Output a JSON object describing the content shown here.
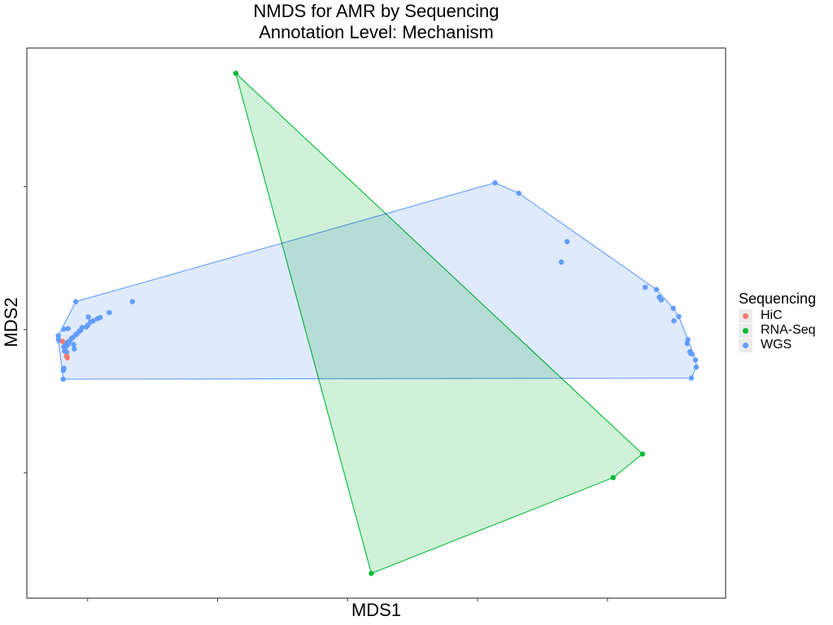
{
  "chart_data": {
    "type": "scatter",
    "title": "NMDS for AMR by Sequencing",
    "subtitle": "Annotation Level: Mechanism",
    "xlabel": "MDS1",
    "ylabel": "MDS2",
    "xlim": [
      0.0,
      1.0
    ],
    "ylim": [
      0.0,
      1.0
    ],
    "grid": false,
    "hulls": true,
    "legend": {
      "title": "Sequencing",
      "placement": "right"
    },
    "series": [
      {
        "name": "HiC",
        "color": "#F8766D",
        "fill": "#FBD0CC",
        "points": [
          [
            0.051,
            0.467
          ],
          [
            0.058,
            0.437
          ],
          [
            0.057,
            0.44
          ]
        ]
      },
      {
        "name": "RNA-Seq",
        "color": "#00BA38",
        "fill": "#CCF0D6",
        "points": [
          [
            0.299,
            0.954
          ],
          [
            0.881,
            0.262
          ],
          [
            0.839,
            0.219
          ],
          [
            0.493,
            0.045
          ]
        ]
      },
      {
        "name": "WGS",
        "color": "#619CFF",
        "fill": "#DDE9FC",
        "points": [
          [
            0.67,
            0.755
          ],
          [
            0.704,
            0.736
          ],
          [
            0.773,
            0.648
          ],
          [
            0.765,
            0.611
          ],
          [
            0.07,
            0.539
          ],
          [
            0.151,
            0.539
          ],
          [
            0.118,
            0.519
          ],
          [
            0.105,
            0.51
          ],
          [
            0.101,
            0.508
          ],
          [
            0.095,
            0.504
          ],
          [
            0.091,
            0.502
          ],
          [
            0.087,
            0.496
          ],
          [
            0.088,
            0.511
          ],
          [
            0.085,
            0.493
          ],
          [
            0.079,
            0.492
          ],
          [
            0.077,
            0.487
          ],
          [
            0.075,
            0.485
          ],
          [
            0.072,
            0.481
          ],
          [
            0.07,
            0.479
          ],
          [
            0.066,
            0.474
          ],
          [
            0.064,
            0.472
          ],
          [
            0.061,
            0.467
          ],
          [
            0.058,
            0.465
          ],
          [
            0.056,
            0.463
          ],
          [
            0.056,
            0.458
          ],
          [
            0.055,
            0.456
          ],
          [
            0.059,
            0.461
          ],
          [
            0.053,
            0.457
          ],
          [
            0.054,
            0.449
          ],
          [
            0.057,
            0.447
          ],
          [
            0.053,
            0.489
          ],
          [
            0.059,
            0.49
          ],
          [
            0.067,
            0.461
          ],
          [
            0.068,
            0.453
          ],
          [
            0.045,
            0.477
          ],
          [
            0.045,
            0.471
          ],
          [
            0.046,
            0.468
          ],
          [
            0.052,
            0.414
          ],
          [
            0.053,
            0.418
          ],
          [
            0.052,
            0.398
          ],
          [
            0.885,
            0.565
          ],
          [
            0.901,
            0.561
          ],
          [
            0.905,
            0.547
          ],
          [
            0.908,
            0.542
          ],
          [
            0.925,
            0.527
          ],
          [
            0.933,
            0.512
          ],
          [
            0.926,
            0.504
          ],
          [
            0.946,
            0.47
          ],
          [
            0.945,
            0.463
          ],
          [
            0.949,
            0.448
          ],
          [
            0.95,
            0.445
          ],
          [
            0.952,
            0.444
          ],
          [
            0.957,
            0.433
          ],
          [
            0.958,
            0.42
          ],
          [
            0.951,
            0.4
          ]
        ]
      }
    ]
  }
}
